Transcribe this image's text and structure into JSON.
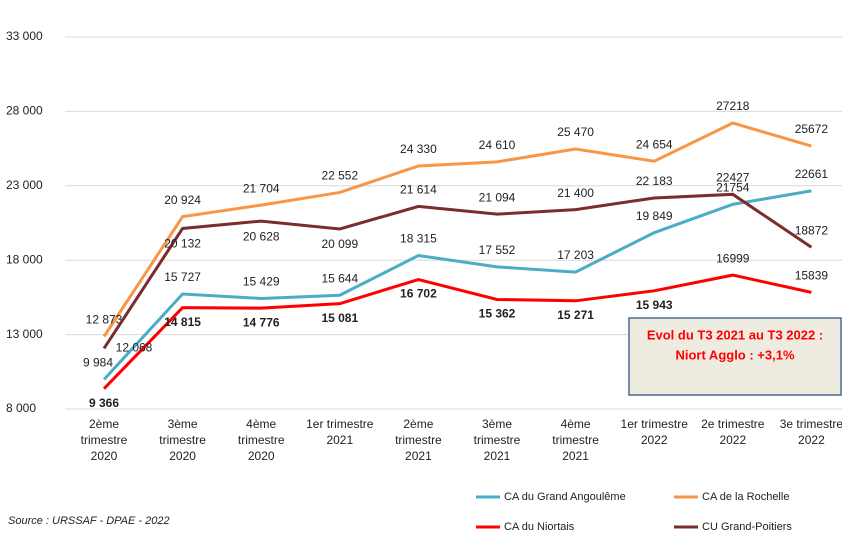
{
  "chart_data": {
    "type": "line",
    "categories": [
      [
        "2ème",
        "trimestre",
        "2020"
      ],
      [
        "3ème",
        "trimestre",
        "2020"
      ],
      [
        "4ème",
        "trimestre",
        "2020"
      ],
      [
        "1er trimestre",
        "2021"
      ],
      [
        "2ème",
        "trimestre",
        "2021"
      ],
      [
        "3ème",
        "trimestre",
        "2021"
      ],
      [
        "4ème",
        "trimestre",
        "2021"
      ],
      [
        "1er trimestre",
        "2022"
      ],
      [
        "2e trimestre",
        "2022"
      ],
      [
        "3e trimestre",
        "2022"
      ]
    ],
    "series": [
      {
        "name": "CA du Grand Angoulême",
        "color": "#4bacc6",
        "values": [
          9984,
          15727,
          15429,
          15644,
          18315,
          17552,
          17203,
          19849,
          21754,
          22661
        ],
        "value_labels": [
          "9 984",
          "15 727",
          "15 429",
          "15 644",
          "18 315",
          "17 552",
          "17 203",
          "19 849",
          "21754",
          "22661"
        ]
      },
      {
        "name": "CA de la Rochelle",
        "color": "#f79646",
        "values": [
          12873,
          20924,
          21704,
          22552,
          24330,
          24610,
          25470,
          24654,
          27218,
          25672
        ],
        "value_labels": [
          "12 873",
          "20 924",
          "21 704",
          "22 552",
          "24 330",
          "24 610",
          "25 470",
          "24 654",
          "27218",
          "25672"
        ]
      },
      {
        "name": "CA du Niortais",
        "color": "#ff0000",
        "values": [
          9366,
          14815,
          14776,
          15081,
          16702,
          15362,
          15271,
          15943,
          16999,
          15839
        ],
        "value_labels": [
          "9 366",
          "14 815",
          "14 776",
          "15 081",
          "16 702",
          "15 362",
          "15 271",
          "15 943",
          "16999",
          "15839"
        ]
      },
      {
        "name": "CU Grand-Poitiers",
        "color": "#7b2c2c",
        "values": [
          12068,
          20132,
          20628,
          20099,
          21614,
          21094,
          21400,
          22183,
          22427,
          18872
        ],
        "value_labels": [
          "12 068",
          "20 132",
          "20 628",
          "20 099",
          "21 614",
          "21 094",
          "21 400",
          "22 183",
          "22427",
          "18872"
        ]
      }
    ],
    "ylim": [
      8000,
      33000
    ],
    "yticks": [
      {
        "value": 8000,
        "label": "8 000"
      },
      {
        "value": 13000,
        "label": "13 000"
      },
      {
        "value": 18000,
        "label": "18 000"
      },
      {
        "value": 23000,
        "label": "23 000"
      },
      {
        "value": 28000,
        "label": "28 000"
      },
      {
        "value": 33000,
        "label": "33 000"
      }
    ],
    "grid": true,
    "annotation": [
      "Evol du T3 2021 au T3 2022 :",
      "Niort Agglo : +3,1%"
    ],
    "source": "Source : URSSAF - DPAE - 2022"
  }
}
